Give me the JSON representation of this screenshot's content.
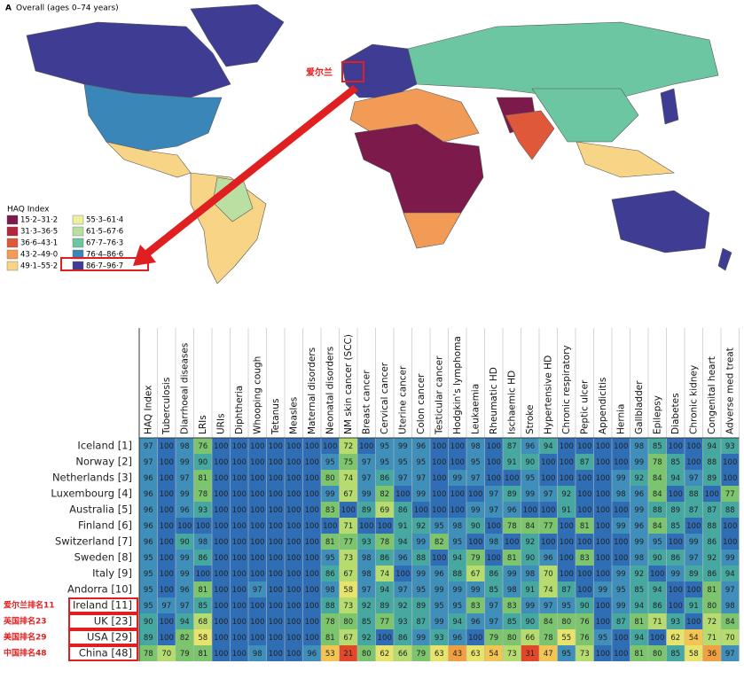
{
  "panel_label": "A",
  "title": "Overall (ages 0–74 years)",
  "map": {
    "annotation": "爱尔兰",
    "legend_title": "HAQ Index",
    "legend": [
      {
        "label": "15·2–31·2",
        "color": "#7b1a4b"
      },
      {
        "label": "31·3–36·5",
        "color": "#b3263f"
      },
      {
        "label": "36·6–43·1",
        "color": "#e0583a"
      },
      {
        "label": "43·2–49·0",
        "color": "#f29b56"
      },
      {
        "label": "49·1–55·2",
        "color": "#f7d486"
      },
      {
        "label": "55·3–61·4",
        "color": "#eef0a0"
      },
      {
        "label": "61·5–67·6",
        "color": "#b9e0a2"
      },
      {
        "label": "67·7–76·3",
        "color": "#6cc6a1"
      },
      {
        "label": "76·4–86·6",
        "color": "#3a86b8"
      },
      {
        "label": "86·7–96·7",
        "color": "#3f3c94"
      }
    ]
  },
  "table": {
    "columns": [
      "HAQ Index",
      "Tuberculosis",
      "Diarrhoeal diseases",
      "LRIs",
      "URIs",
      "Diphtheria",
      "Whooping cough",
      "Tetanus",
      "Measles",
      "Maternal disorders",
      "Neonatal disorders",
      "NM skin cancer (SCC)",
      "Breast cancer",
      "Cervical cancer",
      "Uterine cancer",
      "Colon cancer",
      "Testicular cancer",
      "Hodgkin's lymphoma",
      "Leukaemia",
      "Rheumatic HD",
      "Ischaemic HD",
      "Stroke",
      "Hypertensive HD",
      "Chronic respiratory",
      "Peptic ulcer",
      "Appendicitis",
      "Hernia",
      "Gallbladder",
      "Epilepsy",
      "Diabetes",
      "Chronic kidney",
      "Congenital heart",
      "Adverse med treat"
    ],
    "color_scale": [
      {
        "min": 100,
        "color": "#2f6eb5"
      },
      {
        "min": 95,
        "color": "#3f8fba"
      },
      {
        "min": 85,
        "color": "#46a8a0"
      },
      {
        "min": 75,
        "color": "#7cc46e"
      },
      {
        "min": 65,
        "color": "#b6dc70"
      },
      {
        "min": 55,
        "color": "#e6e46c"
      },
      {
        "min": 45,
        "color": "#f2c552"
      },
      {
        "min": 35,
        "color": "#f0a040"
      },
      {
        "min": 0,
        "color": "#e2472a"
      }
    ],
    "rows": [
      {
        "label": "Iceland [1]",
        "values": [
          97,
          100,
          98,
          76,
          100,
          100,
          100,
          100,
          100,
          100,
          100,
          72,
          100,
          95,
          99,
          96,
          100,
          100,
          98,
          100,
          87,
          96,
          94,
          100,
          100,
          100,
          100,
          98,
          85,
          100,
          100,
          94,
          93
        ]
      },
      {
        "label": "Norway [2]",
        "values": [
          97,
          100,
          99,
          90,
          100,
          100,
          100,
          100,
          100,
          100,
          95,
          75,
          97,
          95,
          95,
          95,
          100,
          100,
          95,
          100,
          91,
          90,
          100,
          100,
          87,
          100,
          100,
          99,
          78,
          85,
          100,
          88,
          100
        ]
      },
      {
        "label": "Netherlands [3]",
        "values": [
          96,
          100,
          97,
          81,
          100,
          100,
          100,
          100,
          100,
          100,
          80,
          74,
          97,
          86,
          97,
          97,
          100,
          99,
          97,
          100,
          100,
          95,
          100,
          100,
          100,
          100,
          99,
          92,
          84,
          94,
          97,
          89,
          100
        ]
      },
      {
        "label": "Luxembourg [4]",
        "values": [
          96,
          100,
          99,
          78,
          100,
          100,
          100,
          100,
          100,
          100,
          99,
          67,
          99,
          82,
          100,
          99,
          100,
          100,
          100,
          97,
          89,
          99,
          97,
          92,
          100,
          100,
          98,
          96,
          84,
          100,
          88,
          100,
          77
        ]
      },
      {
        "label": "Australia [5]",
        "values": [
          96,
          100,
          96,
          93,
          100,
          100,
          100,
          100,
          100,
          100,
          83,
          100,
          89,
          69,
          86,
          100,
          100,
          100,
          99,
          97,
          96,
          100,
          100,
          91,
          100,
          100,
          100,
          99,
          88,
          89,
          87,
          87,
          88
        ]
      },
      {
        "label": "Finland [6]",
        "values": [
          96,
          100,
          100,
          100,
          100,
          100,
          100,
          100,
          100,
          100,
          100,
          71,
          100,
          100,
          91,
          92,
          95,
          98,
          90,
          100,
          78,
          84,
          77,
          100,
          81,
          100,
          99,
          96,
          84,
          85,
          100,
          88,
          100
        ]
      },
      {
        "label": "Switzerland [7]",
        "values": [
          96,
          100,
          90,
          98,
          100,
          100,
          100,
          100,
          100,
          100,
          81,
          77,
          93,
          78,
          94,
          99,
          82,
          95,
          100,
          98,
          100,
          92,
          100,
          100,
          100,
          100,
          100,
          99,
          95,
          100,
          99,
          86,
          100
        ]
      },
      {
        "label": "Sweden [8]",
        "values": [
          95,
          100,
          99,
          86,
          100,
          100,
          100,
          100,
          100,
          100,
          95,
          73,
          98,
          86,
          96,
          88,
          100,
          94,
          79,
          100,
          81,
          90,
          96,
          100,
          83,
          100,
          100,
          98,
          90,
          86,
          97,
          92,
          99
        ]
      },
      {
        "label": "Italy [9]",
        "values": [
          95,
          100,
          99,
          100,
          100,
          100,
          100,
          100,
          100,
          100,
          86,
          67,
          98,
          74,
          100,
          99,
          96,
          88,
          67,
          86,
          99,
          98,
          70,
          100,
          100,
          100,
          99,
          92,
          100,
          99,
          89,
          86,
          94
        ]
      },
      {
        "label": "Andorra [10]",
        "values": [
          95,
          100,
          96,
          81,
          100,
          100,
          97,
          100,
          100,
          100,
          98,
          58,
          97,
          94,
          97,
          95,
          99,
          99,
          99,
          85,
          98,
          91,
          74,
          87,
          100,
          99,
          95,
          85,
          94,
          100,
          100,
          81,
          97
        ]
      },
      {
        "label": "Ireland [11]",
        "annotation": "爱尔兰排名11",
        "values": [
          95,
          97,
          97,
          85,
          100,
          100,
          100,
          100,
          100,
          100,
          88,
          73,
          92,
          89,
          92,
          89,
          95,
          95,
          83,
          97,
          83,
          99,
          97,
          95,
          90,
          100,
          99,
          94,
          86,
          100,
          91,
          80,
          98
        ]
      },
      {
        "label": "UK [23]",
        "annotation": "英国排名23",
        "values": [
          90,
          100,
          94,
          68,
          100,
          100,
          100,
          100,
          100,
          100,
          78,
          80,
          85,
          77,
          93,
          87,
          99,
          94,
          96,
          97,
          85,
          90,
          84,
          80,
          76,
          100,
          87,
          81,
          71,
          93,
          100,
          72,
          84
        ]
      },
      {
        "label": "USA [29]",
        "annotation": "美国排名29",
        "values": [
          89,
          100,
          82,
          58,
          100,
          100,
          100,
          100,
          100,
          100,
          81,
          67,
          92,
          100,
          86,
          99,
          93,
          96,
          100,
          79,
          80,
          66,
          78,
          55,
          76,
          95,
          100,
          94,
          100,
          62,
          54,
          71,
          70
        ]
      },
      {
        "label": "China [48]",
        "annotation": "中国排名48",
        "values": [
          78,
          70,
          79,
          81,
          100,
          100,
          98,
          100,
          100,
          96,
          53,
          21,
          80,
          62,
          66,
          79,
          63,
          43,
          63,
          54,
          73,
          31,
          47,
          95,
          73,
          100,
          100,
          81,
          80,
          85,
          58,
          36,
          97
        ]
      }
    ]
  }
}
